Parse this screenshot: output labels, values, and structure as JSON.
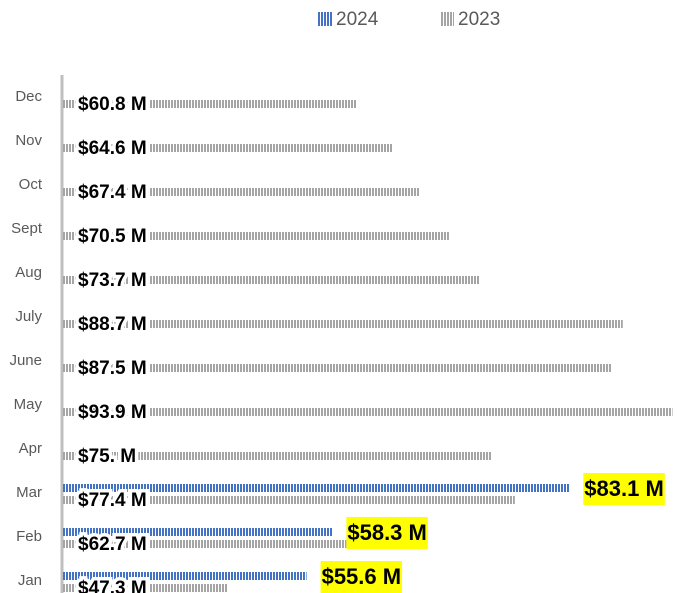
{
  "chart_data": {
    "type": "bar",
    "orientation": "horizontal",
    "categories": [
      "Jan",
      "Feb",
      "Mar",
      "Apr",
      "May",
      "June",
      "July",
      "Aug",
      "Sept",
      "Oct",
      "Nov",
      "Dec"
    ],
    "series": [
      {
        "name": "2024",
        "color": "#4472c4",
        "values": [
          55.6,
          58.3,
          83.1,
          null,
          null,
          null,
          null,
          null,
          null,
          null,
          null,
          null
        ],
        "value_labels": [
          "$55.6 M",
          "$58.3 M",
          "$83.1 M",
          null,
          null,
          null,
          null,
          null,
          null,
          null,
          null,
          null
        ]
      },
      {
        "name": "2023",
        "color": "#a5a5a5",
        "values": [
          47.3,
          62.7,
          77.4,
          75,
          93.9,
          87.5,
          88.7,
          73.7,
          70.5,
          67.4,
          64.6,
          60.8
        ],
        "value_labels": [
          "$47.3 M",
          "$62.7 M",
          "$77.4 M",
          "$75. M",
          "$93.9 M",
          "$87.5 M",
          "$88.7 M",
          "$73.7 M",
          "$70.5 M",
          "$67.4 M",
          "$64.6 M",
          "$60.8 M"
        ]
      }
    ],
    "xlim": [
      30,
      95
    ],
    "legend": "top"
  }
}
